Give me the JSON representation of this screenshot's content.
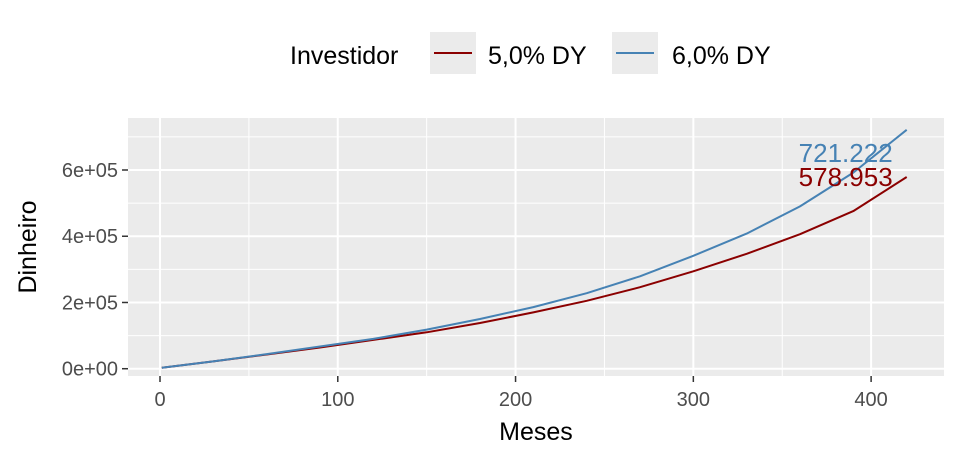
{
  "chart_data": {
    "type": "line",
    "title": "",
    "xlabel": "Meses",
    "ylabel": "Dinheiro",
    "xlim": [
      -18,
      441
    ],
    "ylim": [
      -22000,
      757000
    ],
    "x_ticks": [
      0,
      100,
      200,
      300,
      400
    ],
    "x_tick_labels": [
      "0",
      "100",
      "200",
      "300",
      "400"
    ],
    "y_ticks": [
      0,
      200000,
      400000,
      600000
    ],
    "y_tick_labels": [
      "0e+00",
      "2e+05",
      "4e+05",
      "6e+05"
    ],
    "grid": true,
    "legend": {
      "title": "Investidor",
      "position": "top"
    },
    "series": [
      {
        "name": "5,0% DY",
        "color": "#8B0000",
        "x": [
          1,
          30,
          60,
          90,
          120,
          150,
          180,
          210,
          240,
          270,
          300,
          330,
          360,
          390,
          420
        ],
        "values": [
          3000,
          22000,
          43000,
          64000,
          87000,
          110000,
          138000,
          170000,
          205000,
          246000,
          294000,
          347000,
          406000,
          476000,
          578953
        ],
        "end_label": "578.953"
      },
      {
        "name": "6,0% DY",
        "color": "#4682B4",
        "x": [
          1,
          30,
          60,
          90,
          120,
          150,
          180,
          210,
          240,
          270,
          300,
          330,
          360,
          390,
          420
        ],
        "values": [
          3000,
          22000,
          44000,
          67000,
          90000,
          118000,
          150000,
          186000,
          228000,
          279000,
          341000,
          408000,
          490000,
          592000,
          721222
        ],
        "end_label": "721.222"
      }
    ]
  }
}
